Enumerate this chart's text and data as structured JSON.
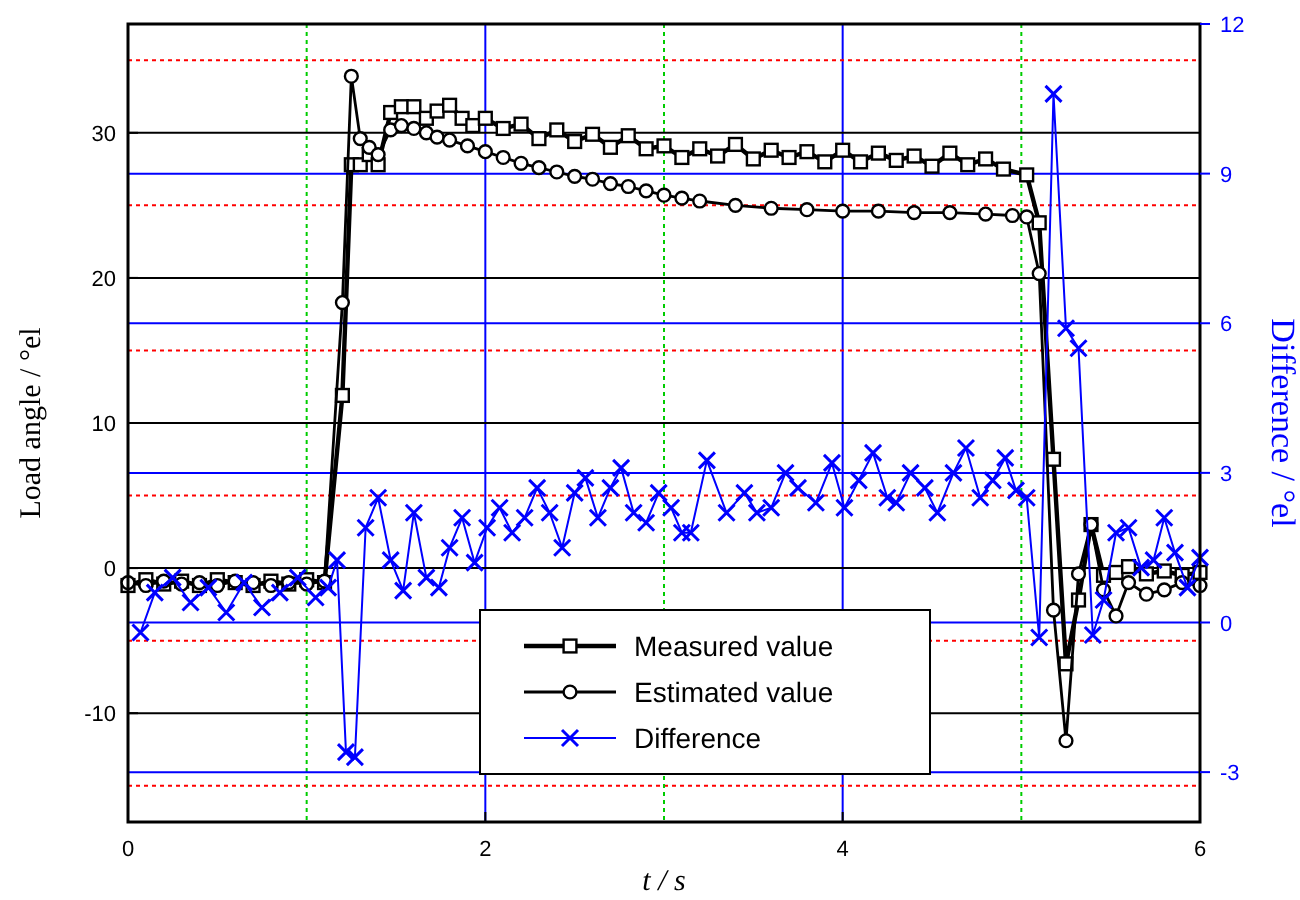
{
  "chart_data": {
    "type": "line",
    "xlabel": "t / s",
    "ylabel": "Load angle / °el",
    "y2label": "Difference  / °el",
    "xlim": [
      0,
      6
    ],
    "xticks": [
      0,
      2,
      4,
      6
    ],
    "ylim": [
      -17.5,
      37.5
    ],
    "yticks": [
      -10,
      0,
      10,
      20,
      30
    ],
    "y2lim": [
      -4,
      12
    ],
    "y2ticks": [
      -3,
      0,
      3,
      6,
      9,
      12
    ],
    "grid": true,
    "legend": "bottom",
    "ref_lines": [
      {
        "axis": "y",
        "value": -15,
        "color": "#ff0000",
        "line_style": "dotted"
      },
      {
        "axis": "y",
        "value": -5,
        "color": "#ff0000",
        "line_style": "dotted"
      },
      {
        "axis": "y",
        "value": 5,
        "color": "#ff0000",
        "line_style": "dotted"
      },
      {
        "axis": "y",
        "value": 15,
        "color": "#ff0000",
        "line_style": "dotted"
      },
      {
        "axis": "y",
        "value": 25,
        "color": "#ff0000",
        "line_style": "dotted"
      },
      {
        "axis": "y",
        "value": 35,
        "color": "#ff0000",
        "line_style": "dotted"
      },
      {
        "axis": "x",
        "value": 1,
        "color": "#00cc00",
        "line_style": "dotted"
      },
      {
        "axis": "x",
        "value": 3,
        "color": "#00cc00",
        "line_style": "dotted"
      },
      {
        "axis": "x",
        "value": 5,
        "color": "#00cc00",
        "line_style": "dotted"
      }
    ],
    "series": [
      {
        "name": "Measured value",
        "color": "#000000",
        "marker": "square",
        "x": [
          0,
          0.1,
          0.2,
          0.3,
          0.4,
          0.5,
          0.6,
          0.7,
          0.8,
          0.9,
          1.0,
          1.1,
          1.2,
          1.25,
          1.3,
          1.35,
          1.4,
          1.47,
          1.53,
          1.6,
          1.67,
          1.73,
          1.8,
          1.87,
          1.93,
          2.0,
          2.1,
          2.2,
          2.3,
          2.4,
          2.5,
          2.6,
          2.7,
          2.8,
          2.9,
          3.0,
          3.1,
          3.2,
          3.3,
          3.4,
          3.5,
          3.6,
          3.7,
          3.8,
          3.9,
          4.0,
          4.1,
          4.2,
          4.3,
          4.4,
          4.5,
          4.6,
          4.7,
          4.8,
          4.9,
          5.03,
          5.1,
          5.18,
          5.25,
          5.32,
          5.39,
          5.46,
          5.53,
          5.6,
          5.7,
          5.8,
          5.9,
          6.0
        ],
        "values": [
          -1.2,
          -0.8,
          -1.1,
          -0.9,
          -1.2,
          -0.8,
          -1.0,
          -1.2,
          -0.9,
          -1.1,
          -0.8,
          -1.0,
          11.9,
          27.8,
          27.8,
          28.5,
          27.8,
          31.4,
          31.8,
          31.8,
          31.0,
          31.5,
          31.9,
          31.0,
          30.5,
          31.0,
          30.3,
          30.6,
          29.6,
          30.2,
          29.4,
          29.9,
          29.0,
          29.8,
          28.9,
          29.1,
          28.3,
          28.9,
          28.4,
          29.2,
          28.2,
          28.8,
          28.3,
          28.7,
          28.0,
          28.8,
          28.0,
          28.6,
          28.1,
          28.4,
          27.7,
          28.6,
          27.8,
          28.2,
          27.5,
          27.1,
          23.8,
          7.5,
          -6.6,
          -2.2,
          3.0,
          -0.5,
          -0.3,
          0.1,
          -0.4,
          -0.2,
          -0.5,
          -0.3
        ]
      },
      {
        "name": "Estimated value",
        "color": "#000000",
        "marker": "circle",
        "x": [
          0,
          0.1,
          0.2,
          0.3,
          0.4,
          0.5,
          0.6,
          0.7,
          0.8,
          0.9,
          1.0,
          1.1,
          1.2,
          1.25,
          1.3,
          1.35,
          1.4,
          1.47,
          1.53,
          1.6,
          1.67,
          1.73,
          1.8,
          1.9,
          2.0,
          2.1,
          2.2,
          2.3,
          2.4,
          2.5,
          2.6,
          2.7,
          2.8,
          2.9,
          3.0,
          3.1,
          3.2,
          3.4,
          3.6,
          3.8,
          4.0,
          4.2,
          4.4,
          4.6,
          4.8,
          4.95,
          5.03,
          5.1,
          5.18,
          5.25,
          5.32,
          5.39,
          5.46,
          5.53,
          5.6,
          5.7,
          5.8,
          5.9,
          6.0
        ],
        "values": [
          -1.0,
          -1.2,
          -0.9,
          -1.1,
          -1.0,
          -1.2,
          -0.9,
          -1.0,
          -1.2,
          -1.0,
          -1.1,
          -0.9,
          18.3,
          33.9,
          29.6,
          29.0,
          28.5,
          30.2,
          30.5,
          30.3,
          30.0,
          29.7,
          29.5,
          29.1,
          28.7,
          28.3,
          27.9,
          27.6,
          27.3,
          27.0,
          26.8,
          26.5,
          26.3,
          26.0,
          25.7,
          25.5,
          25.3,
          25.0,
          24.8,
          24.7,
          24.6,
          24.6,
          24.5,
          24.5,
          24.4,
          24.3,
          24.2,
          20.3,
          -2.9,
          -11.9,
          -0.4,
          3.0,
          -1.5,
          -3.3,
          -1.0,
          -1.8,
          -1.5,
          -1.0,
          -1.2
        ]
      },
      {
        "name": "Difference",
        "color": "#0000ff",
        "marker": "cross",
        "axis": "y2",
        "x": [
          0.07,
          0.15,
          0.25,
          0.35,
          0.45,
          0.55,
          0.65,
          0.75,
          0.85,
          0.95,
          1.05,
          1.12,
          1.17,
          1.22,
          1.27,
          1.33,
          1.4,
          1.47,
          1.54,
          1.6,
          1.67,
          1.74,
          1.8,
          1.87,
          1.94,
          2.01,
          2.08,
          2.15,
          2.22,
          2.29,
          2.36,
          2.43,
          2.5,
          2.56,
          2.63,
          2.7,
          2.76,
          2.83,
          2.9,
          2.97,
          3.04,
          3.1,
          3.15,
          3.24,
          3.35,
          3.45,
          3.52,
          3.6,
          3.68,
          3.75,
          3.85,
          3.94,
          4.01,
          4.09,
          4.17,
          4.25,
          4.3,
          4.38,
          4.46,
          4.53,
          4.62,
          4.69,
          4.77,
          4.84,
          4.91,
          4.97,
          5.03,
          5.1,
          5.18,
          5.25,
          5.32,
          5.4,
          5.46,
          5.53,
          5.6,
          5.67,
          5.74,
          5.8,
          5.86,
          5.93,
          6.0
        ],
        "values": [
          -0.2,
          0.6,
          0.9,
          0.4,
          0.7,
          0.2,
          0.8,
          0.3,
          0.6,
          0.9,
          0.5,
          0.7,
          1.25,
          -2.6,
          -2.7,
          1.9,
          2.5,
          1.25,
          0.64,
          2.2,
          0.9,
          0.7,
          1.5,
          2.1,
          1.2,
          1.9,
          2.3,
          1.8,
          2.1,
          2.7,
          2.2,
          1.5,
          2.6,
          2.9,
          2.1,
          2.7,
          3.1,
          2.2,
          2.0,
          2.6,
          2.3,
          1.8,
          1.8,
          3.25,
          2.2,
          2.6,
          2.2,
          2.3,
          3.0,
          2.7,
          2.4,
          3.2,
          2.3,
          2.85,
          3.4,
          2.5,
          2.4,
          3.0,
          2.7,
          2.2,
          3.0,
          3.5,
          2.5,
          2.85,
          3.3,
          2.65,
          2.5,
          -0.3,
          10.6,
          5.9,
          5.5,
          -0.25,
          0.45,
          1.8,
          1.9,
          1.1,
          1.25,
          2.1,
          1.4,
          0.7,
          1.3
        ]
      }
    ]
  }
}
